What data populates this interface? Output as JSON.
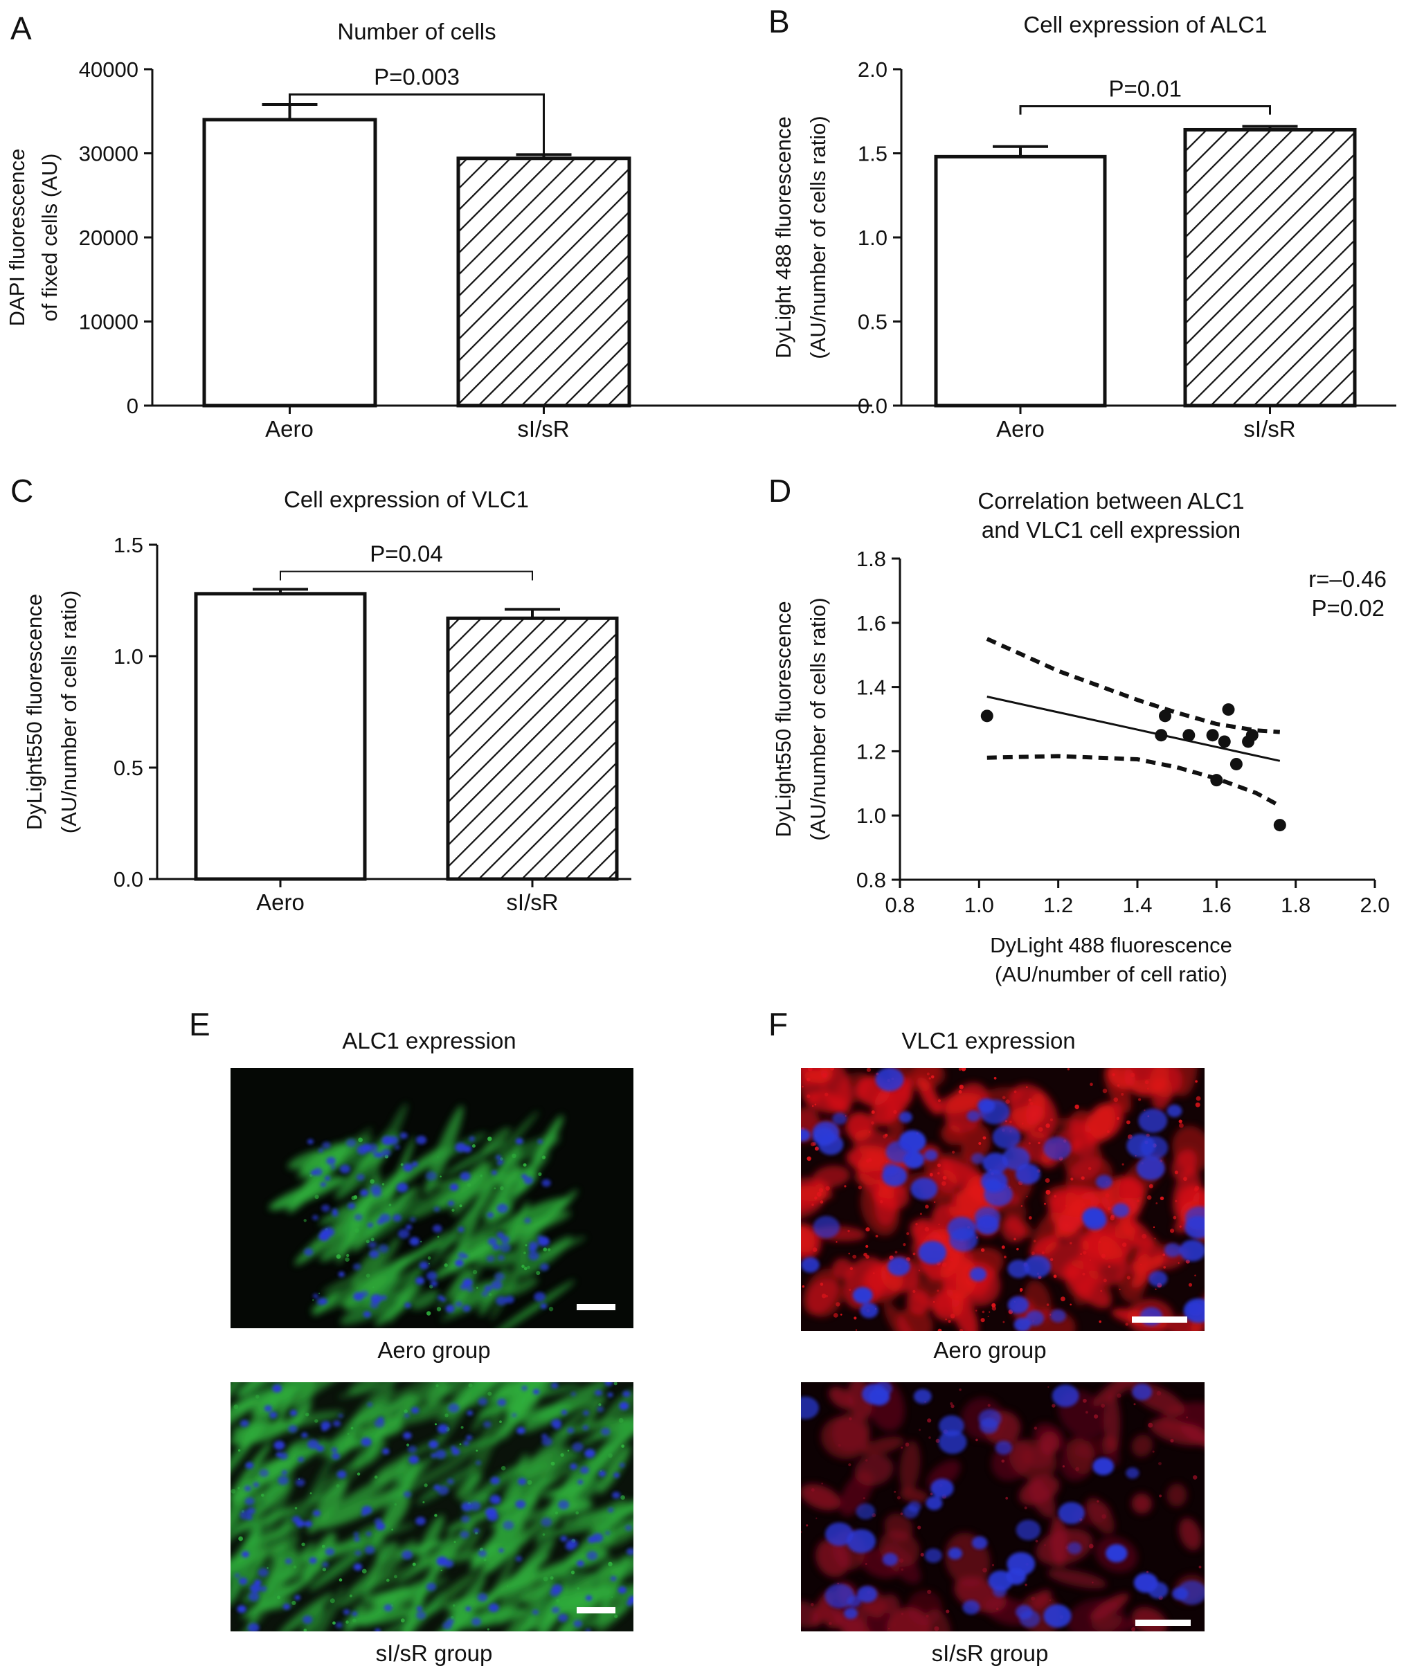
{
  "chart_data": [
    {
      "id": "A",
      "panel_label": "A",
      "type": "bar",
      "title": "Number of cells",
      "ylabel": [
        "DAPI fluorescence",
        "of fixed cells (AU)"
      ],
      "xlabel": "",
      "categories": [
        "Aero",
        "sI/sR"
      ],
      "values": [
        34000,
        29400
      ],
      "errors": [
        1800,
        450
      ],
      "patterns": [
        "none",
        "hatch"
      ],
      "ylim": [
        0,
        40000
      ],
      "yticks": [
        0,
        10000,
        20000,
        30000,
        40000
      ],
      "ytick_labels": [
        "0",
        "10000",
        "20000",
        "30000",
        "40000"
      ],
      "significance": "P=0.003",
      "bracket_left_y": 35800,
      "bracket_right_y": 29800,
      "bracket_top_y": 37000
    },
    {
      "id": "B",
      "panel_label": "B",
      "type": "bar",
      "title": "Cell expression of ALC1",
      "ylabel": [
        "DyLight 488 fluorescence",
        "(AU/number of cells ratio)"
      ],
      "xlabel": "",
      "categories": [
        "Aero",
        "sI/sR"
      ],
      "values": [
        1.48,
        1.64
      ],
      "errors": [
        0.06,
        0.02
      ],
      "patterns": [
        "none",
        "hatch"
      ],
      "ylim": [
        0,
        2.0
      ],
      "yticks": [
        0,
        0.5,
        1.0,
        1.5,
        2.0
      ],
      "ytick_labels": [
        "0.0",
        "0.5",
        "1.0",
        "1.5",
        "2.0"
      ],
      "significance": "P=0.01",
      "bracket_left_y": 1.73,
      "bracket_right_y": 1.73,
      "bracket_top_y": 1.78
    },
    {
      "id": "C",
      "panel_label": "C",
      "type": "bar",
      "title": "Cell expression of VLC1",
      "ylabel": [
        "DyLight550 fluorescence",
        "(AU/number of cells ratio)"
      ],
      "xlabel": "",
      "categories": [
        "Aero",
        "sI/sR"
      ],
      "values": [
        1.28,
        1.17
      ],
      "errors": [
        0.02,
        0.04
      ],
      "patterns": [
        "none",
        "hatch"
      ],
      "ylim": [
        0,
        1.5
      ],
      "yticks": [
        0,
        0.5,
        1.0,
        1.5
      ],
      "ytick_labels": [
        "0.0",
        "0.5",
        "1.0",
        "1.5"
      ],
      "significance": "P=0.04",
      "bracket_left_y": 1.34,
      "bracket_right_y": 1.34,
      "bracket_top_y": 1.38
    },
    {
      "id": "D",
      "panel_label": "D",
      "type": "scatter",
      "title": [
        "Correlation between ALC1",
        "and VLC1 cell expression"
      ],
      "xlabel": [
        "DyLight 488 fluorescence",
        "(AU/number of cell ratio)"
      ],
      "ylabel": [
        "DyLight550 fluorescence",
        "(AU/number of cells ratio)"
      ],
      "xlim": [
        0.8,
        2.0
      ],
      "ylim": [
        0.8,
        1.8
      ],
      "xticks": [
        0.8,
        1.0,
        1.2,
        1.4,
        1.6,
        1.8,
        2.0
      ],
      "xtick_labels": [
        "0.8",
        "1.0",
        "1.2",
        "1.4",
        "1.6",
        "1.8",
        "2.0"
      ],
      "yticks": [
        0.8,
        1.0,
        1.2,
        1.4,
        1.6,
        1.8
      ],
      "ytick_labels": [
        "0.8",
        "1.0",
        "1.2",
        "1.4",
        "1.6",
        "1.8"
      ],
      "x": [
        1.02,
        1.46,
        1.47,
        1.53,
        1.59,
        1.6,
        1.62,
        1.63,
        1.65,
        1.68,
        1.69,
        1.76
      ],
      "y": [
        1.31,
        1.25,
        1.31,
        1.25,
        1.25,
        1.11,
        1.23,
        1.33,
        1.16,
        1.23,
        1.25,
        0.97
      ],
      "fit_line": {
        "x": [
          1.02,
          1.76
        ],
        "y": [
          1.37,
          1.17
        ]
      },
      "ci_upper": {
        "x": [
          1.02,
          1.2,
          1.4,
          1.5,
          1.6,
          1.7,
          1.76
        ],
        "y": [
          1.55,
          1.45,
          1.36,
          1.32,
          1.285,
          1.265,
          1.26
        ]
      },
      "ci_lower": {
        "x": [
          1.02,
          1.2,
          1.4,
          1.5,
          1.6,
          1.7,
          1.76
        ],
        "y": [
          1.18,
          1.185,
          1.175,
          1.15,
          1.115,
          1.07,
          1.03
        ]
      },
      "annotation": [
        "r=–0.46",
        "P=0.02"
      ]
    }
  ],
  "panels": {
    "E": {
      "label": "E",
      "title": "ALC1 expression",
      "captions": [
        "Aero group",
        "sI/sR group"
      ],
      "channel_colors": [
        "#2fae3c",
        "#2a3ad8"
      ]
    },
    "F": {
      "label": "F",
      "title": "VLC1 expression",
      "captions": [
        "Aero group",
        "sI/sR group"
      ],
      "channel_colors": [
        "#e0141a",
        "#2a3ad8"
      ]
    }
  }
}
